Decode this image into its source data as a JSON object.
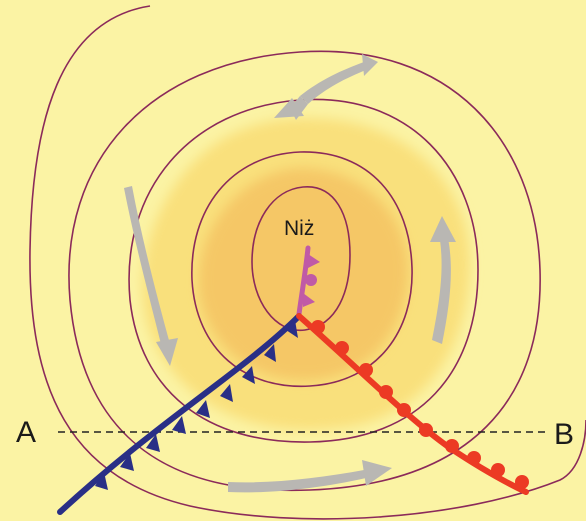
{
  "labels": {
    "center": "Niż",
    "point_a": "A",
    "point_b": "B"
  },
  "colors": {
    "background": "#fbf3a4",
    "isobar": "#8b2a5a",
    "zone_outer": "#f9e07c",
    "zone_inner": "#f5c766",
    "cold_front": "#2a2f86",
    "warm_front": "#ec3a24",
    "occluded_front": "#c05aa6",
    "wind_arrow": "#b9b7b3",
    "section_line": "#222222"
  },
  "fronts": [
    "cold-front",
    "warm-front",
    "occluded-front"
  ],
  "icons": [
    "wind-arrow",
    "cold-front-triangle",
    "warm-front-semicircle"
  ]
}
